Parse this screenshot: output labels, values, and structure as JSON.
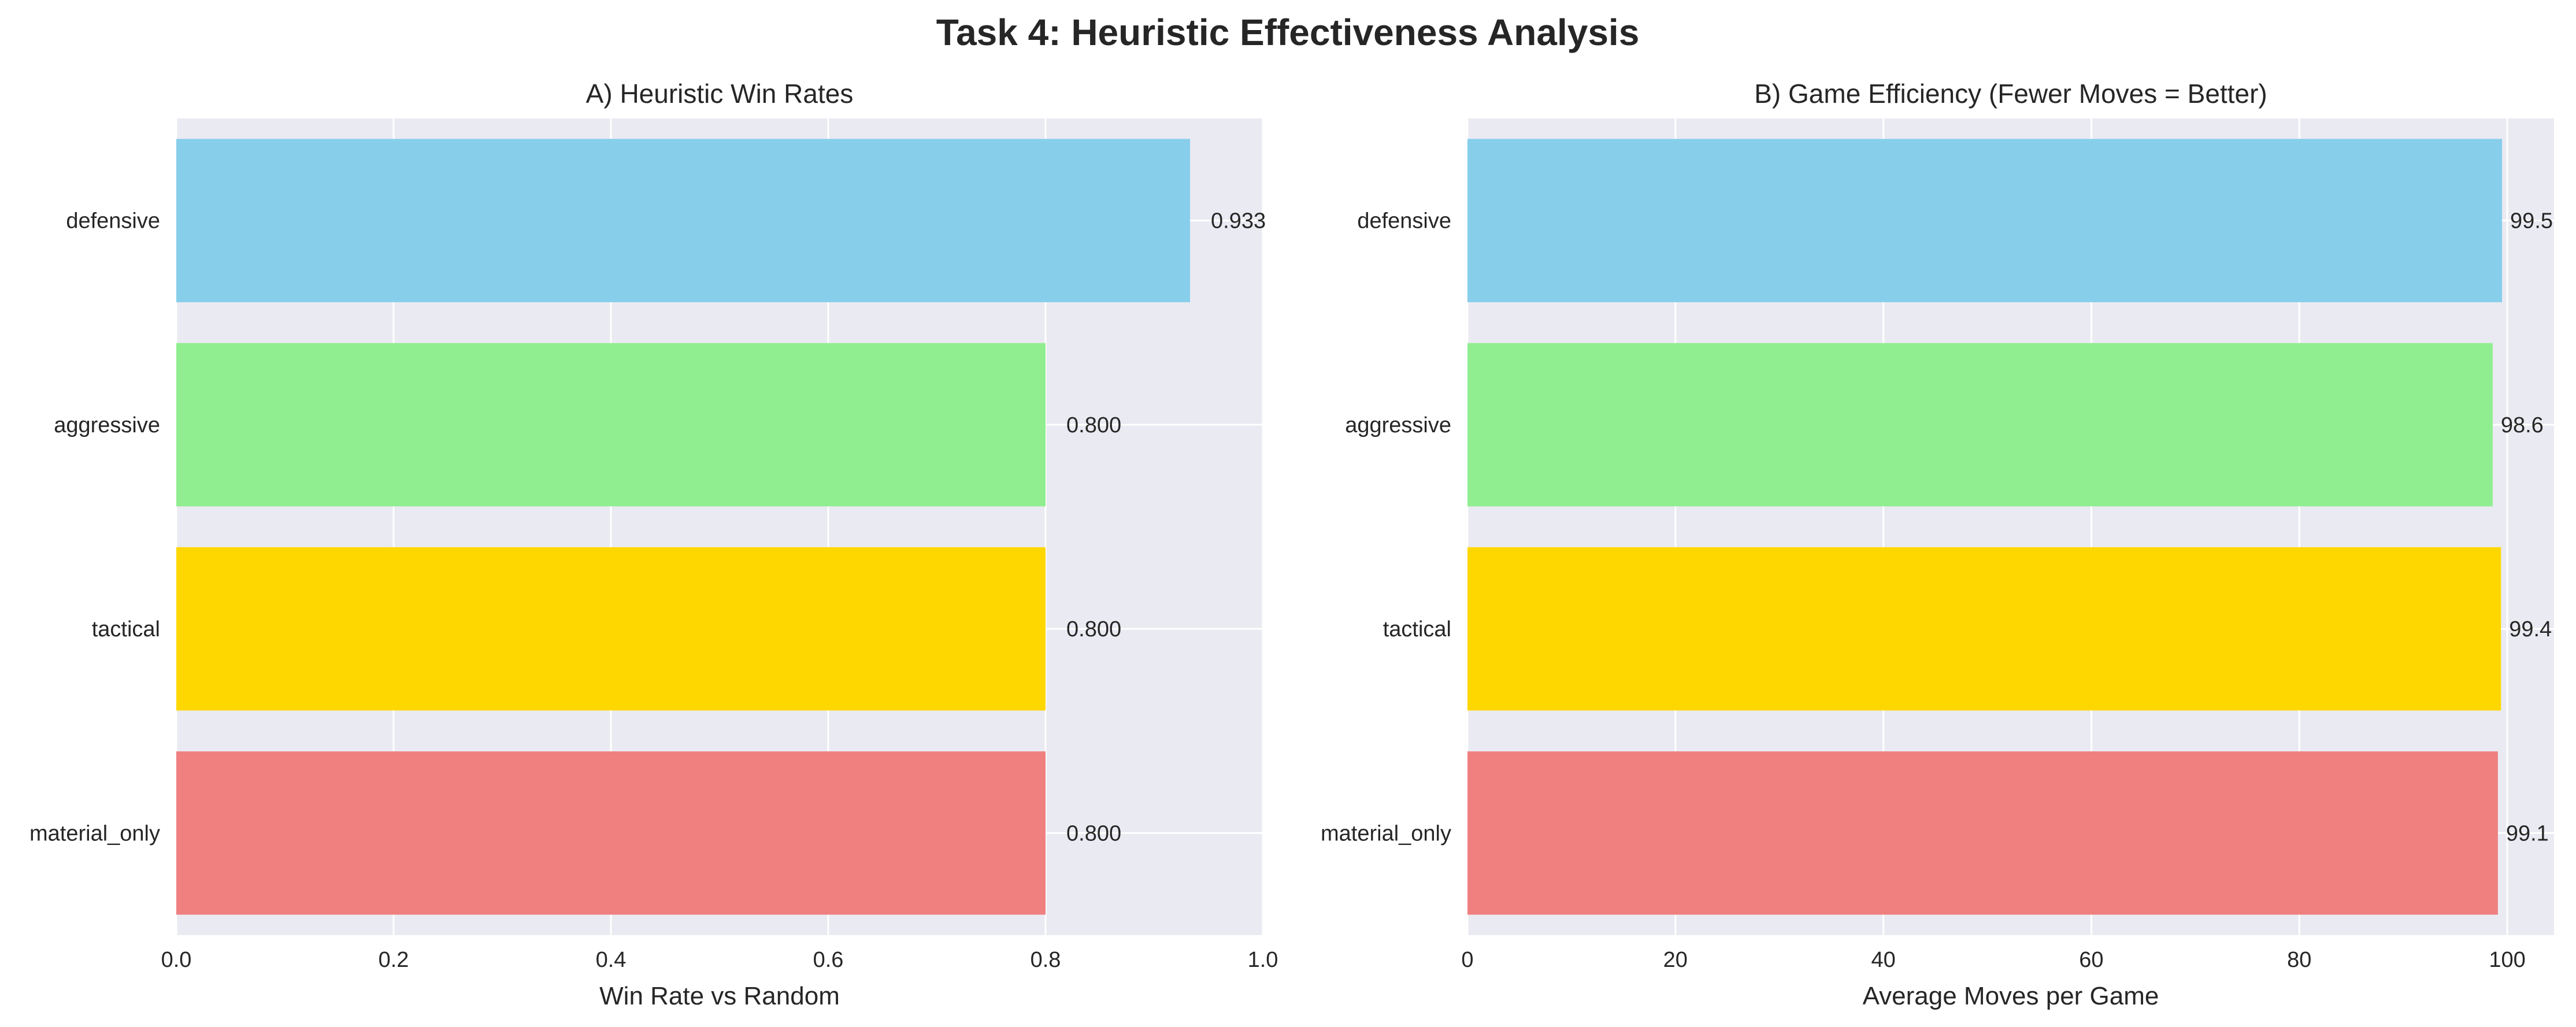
{
  "figure": {
    "title": "Task 4: Heuristic Effectiveness Analysis"
  },
  "chart_data": [
    {
      "type": "bar",
      "orientation": "horizontal",
      "title": "A) Heuristic Win Rates",
      "xlabel": "Win Rate vs Random",
      "ylabel": "",
      "categories": [
        "defensive",
        "aggressive",
        "tactical",
        "material_only"
      ],
      "values": [
        0.933,
        0.8,
        0.8,
        0.8
      ],
      "value_labels": [
        "0.933",
        "0.800",
        "0.800",
        "0.800"
      ],
      "colors": [
        "#87CEEB",
        "#90EE90",
        "#FFD700",
        "#F08080"
      ],
      "xlim": [
        0.0,
        1.0
      ],
      "xticks": [
        0.0,
        0.2,
        0.4,
        0.6,
        0.8,
        1.0
      ],
      "xtick_labels": [
        "0.0",
        "0.2",
        "0.4",
        "0.6",
        "0.8",
        "1.0"
      ],
      "grid": true
    },
    {
      "type": "bar",
      "orientation": "horizontal",
      "title": "B) Game Efficiency (Fewer Moves = Better)",
      "xlabel": "Average Moves per Game",
      "ylabel": "",
      "categories": [
        "defensive",
        "aggressive",
        "tactical",
        "material_only"
      ],
      "values": [
        99.5,
        98.6,
        99.4,
        99.1
      ],
      "value_labels": [
        "99.5",
        "98.6",
        "99.4",
        "99.1"
      ],
      "colors": [
        "#87CEEB",
        "#90EE90",
        "#FFD700",
        "#F08080"
      ],
      "xlim": [
        0,
        104.5
      ],
      "xticks": [
        0,
        20,
        40,
        60,
        80,
        100
      ],
      "xtick_labels": [
        "0",
        "20",
        "40",
        "60",
        "80",
        "100"
      ],
      "grid": true
    }
  ],
  "style": {
    "plot_background": "#EAEAF2",
    "grid_color": "#FFFFFF",
    "text_color": "#262626"
  }
}
